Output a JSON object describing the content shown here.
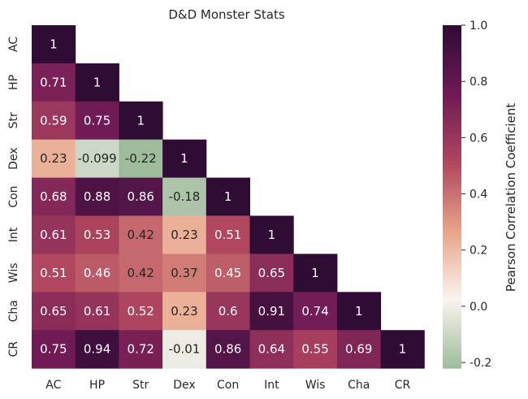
{
  "chart_data": {
    "type": "heatmap",
    "title": "D&D Monster Stats",
    "row_labels": [
      "AC",
      "HP",
      "Str",
      "Dex",
      "Con",
      "Int",
      "Wis",
      "Cha",
      "CR"
    ],
    "col_labels": [
      "AC",
      "HP",
      "Str",
      "Dex",
      "Con",
      "Int",
      "Wis",
      "Cha",
      "CR"
    ],
    "cells": [
      [
        "1"
      ],
      [
        "0.71",
        "1"
      ],
      [
        "0.59",
        "0.75",
        "1"
      ],
      [
        "0.23",
        "-0.099",
        "-0.22",
        "1"
      ],
      [
        "0.68",
        "0.88",
        "0.86",
        "-0.18",
        "1"
      ],
      [
        "0.61",
        "0.53",
        "0.42",
        "0.23",
        "0.51",
        "1"
      ],
      [
        "0.51",
        "0.46",
        "0.42",
        "0.37",
        "0.45",
        "0.65",
        "1"
      ],
      [
        "0.65",
        "0.61",
        "0.52",
        "0.23",
        "0.6",
        "0.91",
        "0.74",
        "1"
      ],
      [
        "0.75",
        "0.94",
        "0.72",
        "-0.01",
        "0.86",
        "0.64",
        "0.55",
        "0.69",
        "1"
      ]
    ],
    "colorbar": {
      "label": "Pearson Correlation Coefficient",
      "vmin": -0.22,
      "vmax": 1.0,
      "ticks": [
        "-0.2",
        "0.0",
        "0.2",
        "0.4",
        "0.6",
        "0.8",
        "1.0"
      ]
    },
    "colormap_stops": [
      "#9ebb9c",
      "#faf4f0",
      "#e8a488",
      "#b0465e",
      "#6e1a55",
      "#2f0c34"
    ]
  }
}
